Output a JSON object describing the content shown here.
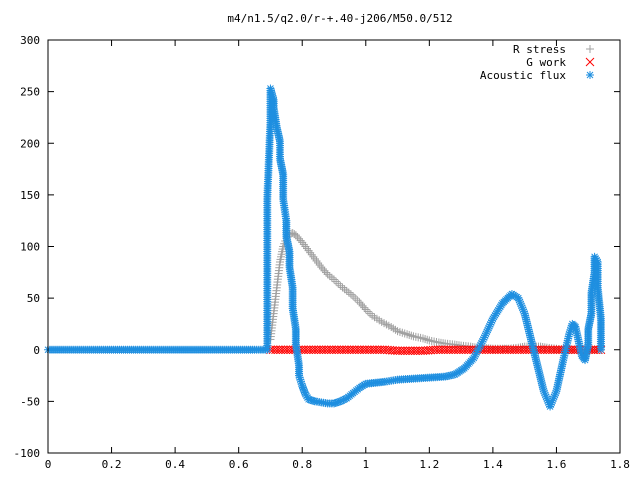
{
  "chart_data": {
    "type": "scatter",
    "title": "m4/n1.5/q2.0/r-+.40-j206/M50.0/512",
    "xlabel": "",
    "ylabel": "",
    "xlim": [
      0,
      1.8
    ],
    "ylim": [
      -100,
      300
    ],
    "x_ticks": [
      "0",
      "0.2",
      "0.4",
      "0.6",
      "0.8",
      "1",
      "1.2",
      "1.4",
      "1.6",
      "1.8"
    ],
    "y_ticks": [
      "-100",
      "-50",
      "0",
      "50",
      "100",
      "150",
      "200",
      "250",
      "300"
    ],
    "grid": false,
    "legend_position": "top-right",
    "series": [
      {
        "name": "R stress",
        "marker": "plus",
        "color": "#a0a0a0",
        "points": [
          [
            0.7,
            10
          ],
          [
            0.71,
            35
          ],
          [
            0.72,
            60
          ],
          [
            0.73,
            85
          ],
          [
            0.74,
            100
          ],
          [
            0.75,
            108
          ],
          [
            0.76,
            112
          ],
          [
            0.77,
            113
          ],
          [
            0.78,
            111
          ],
          [
            0.8,
            104
          ],
          [
            0.82,
            96
          ],
          [
            0.84,
            88
          ],
          [
            0.86,
            80
          ],
          [
            0.88,
            73
          ],
          [
            0.9,
            68
          ],
          [
            0.92,
            62
          ],
          [
            0.94,
            57
          ],
          [
            0.96,
            52
          ],
          [
            0.98,
            46
          ],
          [
            1.0,
            39
          ],
          [
            1.02,
            33
          ],
          [
            1.05,
            27
          ],
          [
            1.08,
            22
          ],
          [
            1.1,
            18
          ],
          [
            1.13,
            15
          ],
          [
            1.15,
            13
          ],
          [
            1.18,
            11
          ],
          [
            1.2,
            9
          ],
          [
            1.23,
            7
          ],
          [
            1.25,
            6
          ],
          [
            1.28,
            5
          ],
          [
            1.3,
            4
          ],
          [
            1.33,
            3
          ],
          [
            1.35,
            2
          ],
          [
            1.38,
            1.5
          ],
          [
            1.4,
            1
          ],
          [
            1.43,
            1
          ],
          [
            1.45,
            1
          ],
          [
            1.48,
            2
          ],
          [
            1.5,
            3
          ],
          [
            1.53,
            3
          ],
          [
            1.55,
            3
          ],
          [
            1.57,
            2
          ],
          [
            1.6,
            1
          ],
          [
            1.63,
            0
          ],
          [
            1.65,
            0
          ],
          [
            1.68,
            0
          ],
          [
            1.7,
            0
          ],
          [
            1.72,
            0
          ],
          [
            1.74,
            0
          ]
        ]
      },
      {
        "name": "G work",
        "marker": "cross",
        "color": "#ff0000",
        "points": [
          [
            0.7,
            0
          ],
          [
            0.74,
            0
          ],
          [
            0.78,
            0
          ],
          [
            0.82,
            0
          ],
          [
            0.86,
            0
          ],
          [
            0.9,
            0
          ],
          [
            0.94,
            0
          ],
          [
            0.98,
            0
          ],
          [
            1.02,
            0
          ],
          [
            1.06,
            0
          ],
          [
            1.1,
            -1
          ],
          [
            1.14,
            -1
          ],
          [
            1.18,
            -1
          ],
          [
            1.22,
            0
          ],
          [
            1.26,
            0
          ],
          [
            1.3,
            0
          ],
          [
            1.34,
            0
          ],
          [
            1.38,
            0
          ],
          [
            1.42,
            0
          ],
          [
            1.46,
            0
          ],
          [
            1.5,
            0
          ],
          [
            1.54,
            0
          ],
          [
            1.58,
            0
          ],
          [
            1.62,
            0
          ],
          [
            1.66,
            0
          ],
          [
            1.7,
            0
          ],
          [
            1.74,
            0
          ]
        ]
      },
      {
        "name": "Acoustic flux",
        "marker": "star",
        "color": "#1f8fe0",
        "points": [
          [
            0.0,
            0
          ],
          [
            0.05,
            0
          ],
          [
            0.1,
            0
          ],
          [
            0.15,
            0
          ],
          [
            0.2,
            0
          ],
          [
            0.25,
            0
          ],
          [
            0.3,
            0
          ],
          [
            0.35,
            0
          ],
          [
            0.4,
            0
          ],
          [
            0.45,
            0
          ],
          [
            0.5,
            0
          ],
          [
            0.55,
            0
          ],
          [
            0.6,
            0
          ],
          [
            0.65,
            0
          ],
          [
            0.69,
            0
          ],
          [
            0.69,
            146
          ],
          [
            0.7,
            222
          ],
          [
            0.7,
            253
          ],
          [
            0.71,
            242
          ],
          [
            0.71,
            235
          ],
          [
            0.72,
            215
          ],
          [
            0.73,
            202
          ],
          [
            0.73,
            185
          ],
          [
            0.74,
            170
          ],
          [
            0.74,
            146
          ],
          [
            0.75,
            125
          ],
          [
            0.75,
            110
          ],
          [
            0.76,
            95
          ],
          [
            0.76,
            80
          ],
          [
            0.77,
            60
          ],
          [
            0.77,
            40
          ],
          [
            0.78,
            20
          ],
          [
            0.78,
            5
          ],
          [
            0.79,
            -15
          ],
          [
            0.79,
            -25
          ],
          [
            0.8,
            -35
          ],
          [
            0.81,
            -43
          ],
          [
            0.82,
            -48
          ],
          [
            0.84,
            -50
          ],
          [
            0.86,
            -51
          ],
          [
            0.88,
            -52
          ],
          [
            0.9,
            -52
          ],
          [
            0.92,
            -50
          ],
          [
            0.94,
            -47
          ],
          [
            0.96,
            -42
          ],
          [
            0.98,
            -37
          ],
          [
            1.0,
            -33
          ],
          [
            1.03,
            -32
          ],
          [
            1.06,
            -31
          ],
          [
            1.1,
            -29
          ],
          [
            1.15,
            -28
          ],
          [
            1.2,
            -27
          ],
          [
            1.25,
            -26
          ],
          [
            1.28,
            -24
          ],
          [
            1.31,
            -18
          ],
          [
            1.34,
            -8
          ],
          [
            1.37,
            10
          ],
          [
            1.4,
            30
          ],
          [
            1.43,
            45
          ],
          [
            1.46,
            54
          ],
          [
            1.48,
            50
          ],
          [
            1.5,
            35
          ],
          [
            1.52,
            10
          ],
          [
            1.54,
            -15
          ],
          [
            1.56,
            -40
          ],
          [
            1.58,
            -55
          ],
          [
            1.6,
            -40
          ],
          [
            1.62,
            -12
          ],
          [
            1.64,
            15
          ],
          [
            1.65,
            25
          ],
          [
            1.66,
            22
          ],
          [
            1.67,
            8
          ],
          [
            1.68,
            -6
          ],
          [
            1.69,
            -10
          ],
          [
            1.7,
            5
          ],
          [
            1.7,
            20
          ],
          [
            1.71,
            35
          ],
          [
            1.71,
            55
          ],
          [
            1.72,
            75
          ],
          [
            1.72,
            90
          ],
          [
            1.73,
            85
          ],
          [
            1.73,
            60
          ],
          [
            1.74,
            30
          ],
          [
            1.74,
            0
          ]
        ]
      }
    ]
  }
}
